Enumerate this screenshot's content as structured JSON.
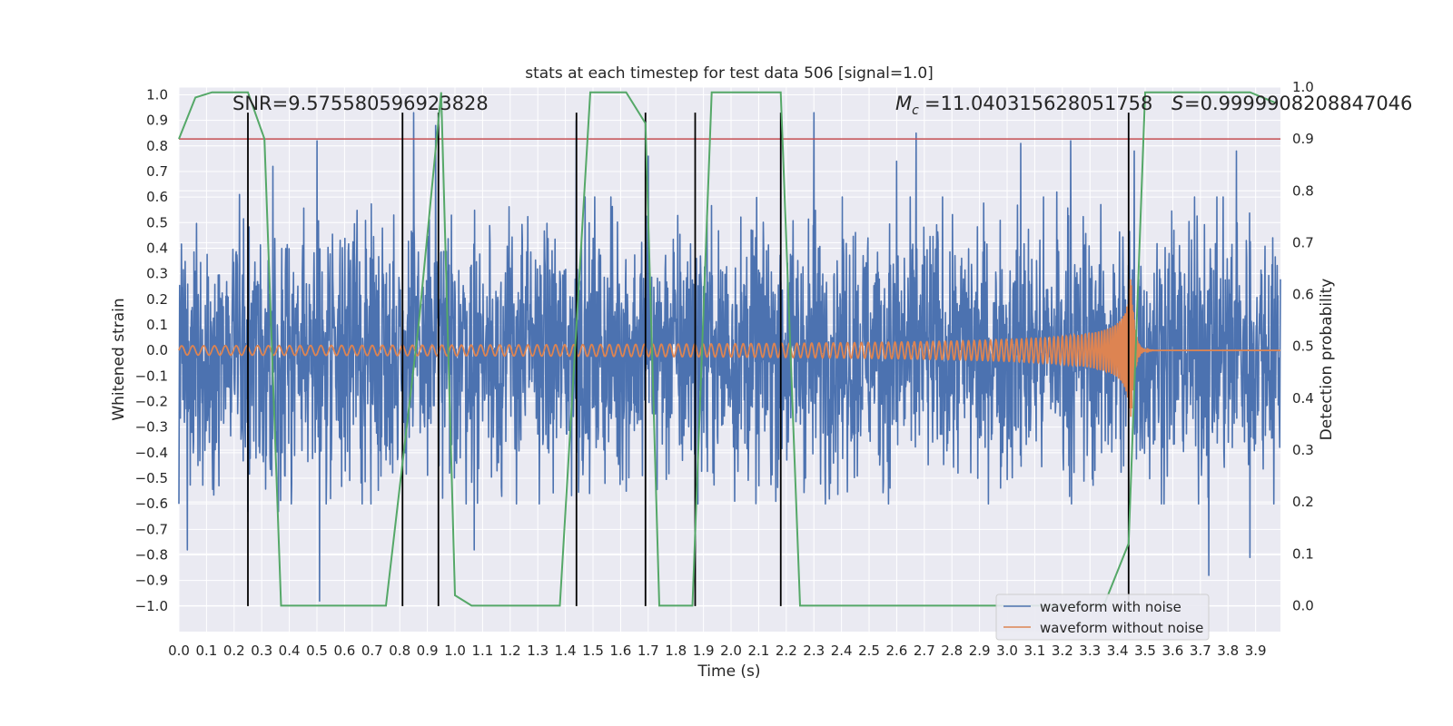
{
  "chart_data": {
    "type": "line",
    "title": "stats at each timestep for test data 506 [signal=1.0]",
    "xlabel": "Time (s)",
    "ylabel": "Whitened strain",
    "y2label": "Detection probability",
    "xlim": [
      0.0,
      3.99
    ],
    "ylim": [
      -1.1,
      1.03
    ],
    "y2lim": [
      -0.05,
      1.0
    ],
    "x_ticks": [
      0.0,
      0.1,
      0.2,
      0.3,
      0.4,
      0.5,
      0.6,
      0.7,
      0.8,
      0.9,
      1.0,
      1.1,
      1.2,
      1.3,
      1.4,
      1.5,
      1.6,
      1.7,
      1.8,
      1.9,
      2.0,
      2.1,
      2.2,
      2.3,
      2.4,
      2.5,
      2.6,
      2.7,
      2.8,
      2.9,
      3.0,
      3.1,
      3.2,
      3.3,
      3.4,
      3.5,
      3.6,
      3.7,
      3.8,
      3.9
    ],
    "x_tick_labels": [
      "0.0",
      "0.1",
      "0.2",
      "0.3",
      "0.4",
      "0.5",
      "0.6",
      "0.7",
      "0.8",
      "0.9",
      "1.0",
      "1.1",
      "1.2",
      "1.3",
      "1.4",
      "1.5",
      "1.6",
      "1.7",
      "1.8",
      "1.9",
      "2.0",
      "2.1",
      "2.2",
      "2.3",
      "2.4",
      "2.5",
      "2.6",
      "2.7",
      "2.8",
      "2.9",
      "3.0",
      "3.1",
      "3.2",
      "3.3",
      "3.4",
      "3.5",
      "3.6",
      "3.7",
      "3.8",
      "3.9"
    ],
    "y_ticks": [
      1.0,
      0.9,
      0.8,
      0.7,
      0.6,
      0.5,
      0.4,
      0.3,
      0.2,
      0.1,
      0.0,
      -0.1,
      -0.2,
      -0.3,
      -0.4,
      -0.5,
      -0.6,
      -0.7,
      -0.8,
      -0.9,
      -1.0
    ],
    "y_tick_labels": [
      "1.0",
      "0.9",
      "0.8",
      "0.7",
      "0.6",
      "0.5",
      "0.4",
      "0.3",
      "0.2",
      "0.1",
      "0.0",
      "−0.1",
      "−0.2",
      "−0.3",
      "−0.4",
      "−0.5",
      "−0.6",
      "−0.7",
      "−0.8",
      "−0.9",
      "−1.0"
    ],
    "y2_ticks": [
      0.0,
      0.1,
      0.2,
      0.3,
      0.4,
      0.5,
      0.6,
      0.7,
      0.8,
      0.9,
      1.0
    ],
    "y2_tick_labels": [
      "0.0",
      "0.1",
      "0.2",
      "0.3",
      "0.4",
      "0.5",
      "0.6",
      "0.7",
      "0.8",
      "0.9",
      "1.0"
    ],
    "grid": true,
    "legend_position": "lower-right",
    "annotations": {
      "snr": "SNR=9.575580596923828",
      "mc": "=11.040315628051758",
      "s": "=0.9999908208847046"
    },
    "series": [
      {
        "name": "waveform with noise",
        "color": "#4c72b0",
        "axis": "left",
        "kind": "noise",
        "amplitude_envelope": 0.45,
        "peaks": [
          {
            "x": 0.03,
            "y": -0.78
          },
          {
            "x": 0.22,
            "y": 0.61
          },
          {
            "x": 0.25,
            "y": -0.63
          },
          {
            "x": 0.34,
            "y": 0.72
          },
          {
            "x": 0.36,
            "y": -0.63
          },
          {
            "x": 0.5,
            "y": 0.82
          },
          {
            "x": 0.51,
            "y": -0.98
          },
          {
            "x": 0.82,
            "y": -0.4
          },
          {
            "x": 0.85,
            "y": 0.93
          },
          {
            "x": 0.93,
            "y": 0.88
          },
          {
            "x": 1.07,
            "y": -0.78
          },
          {
            "x": 1.44,
            "y": 0.9
          },
          {
            "x": 1.7,
            "y": 0.76
          },
          {
            "x": 1.87,
            "y": -0.73
          },
          {
            "x": 2.3,
            "y": 0.93
          },
          {
            "x": 2.6,
            "y": 0.74
          },
          {
            "x": 2.67,
            "y": 0.85
          },
          {
            "x": 3.05,
            "y": 0.81
          },
          {
            "x": 3.18,
            "y": 0.62
          },
          {
            "x": 3.23,
            "y": 0.82
          },
          {
            "x": 3.46,
            "y": 0.78
          },
          {
            "x": 3.73,
            "y": -0.88
          },
          {
            "x": 3.83,
            "y": 0.78
          },
          {
            "x": 3.88,
            "y": -0.81
          }
        ]
      },
      {
        "name": "waveform without noise",
        "color": "#dd8452",
        "axis": "left",
        "kind": "chirp",
        "merger_time": 3.45,
        "start_frequency_hz": 25,
        "start_amplitude": 0.018,
        "peak_amplitude": 0.28
      },
      {
        "name": "",
        "color": "#55a868",
        "axis": "right",
        "kind": "probability",
        "x": [
          0.0,
          0.06,
          0.12,
          0.25,
          0.31,
          0.37,
          0.44,
          0.52,
          0.75,
          0.87,
          0.95,
          1.0,
          1.06,
          1.38,
          1.49,
          1.62,
          1.69,
          1.74,
          1.8,
          1.86,
          1.93,
          2.13,
          2.18,
          2.25,
          2.3,
          2.5,
          3.0,
          3.35,
          3.44,
          3.5,
          3.88,
          3.97
        ],
        "y": [
          0.9,
          0.98,
          0.99,
          0.99,
          0.9,
          0.0,
          0.0,
          0.0,
          0.0,
          0.55,
          0.99,
          0.02,
          0.0,
          0.0,
          0.99,
          0.99,
          0.93,
          0.0,
          0.0,
          0.0,
          0.99,
          0.99,
          0.99,
          0.0,
          0.0,
          0.0,
          0.0,
          0.0,
          0.12,
          0.99,
          0.99,
          0.97
        ]
      }
    ],
    "threshold": {
      "value": 0.9,
      "axis": "right",
      "color": "#c44e52"
    },
    "vertical_markers": {
      "x": [
        0.25,
        0.81,
        0.94,
        1.44,
        1.69,
        1.87,
        2.18,
        3.44
      ],
      "y_from": -1.0,
      "y_to": 0.93,
      "color": "#000000"
    }
  }
}
